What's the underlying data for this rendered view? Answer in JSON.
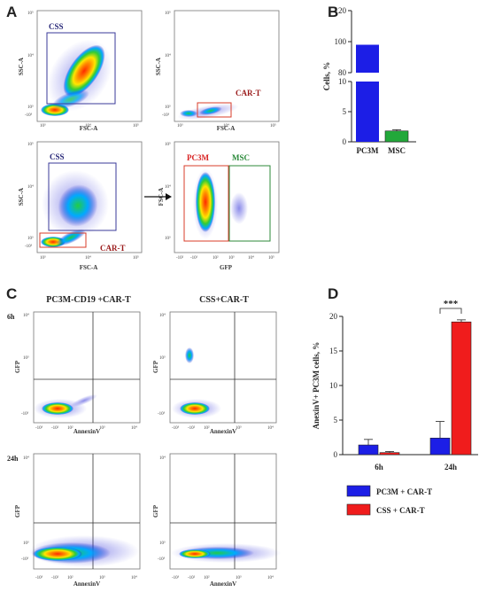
{
  "panels": {
    "a": "A",
    "b": "B",
    "c": "C",
    "d": "D"
  },
  "panel_a": {
    "plots": [
      {
        "x_label": "FSC-A",
        "y_label": "SSC-A",
        "gate": "CSS",
        "x_ticks": [
          "10³",
          "10⁴",
          "10⁵"
        ],
        "y_ticks": [
          "-10³",
          "10³",
          "10⁴",
          "10⁵"
        ]
      },
      {
        "x_label": "FSC-A",
        "y_label": "SSC-A",
        "gate": "CAR-T",
        "x_ticks": [
          "10³",
          "10⁴",
          "10⁵"
        ],
        "y_ticks": [
          "-10³",
          "10³",
          "10⁴",
          "10⁵"
        ]
      },
      {
        "x_label": "FSC-A",
        "y_label": "SSC-A",
        "gates": [
          "CSS",
          "CAR-T"
        ],
        "x_ticks": [
          "10³",
          "10⁴",
          "10⁵"
        ],
        "y_ticks": [
          "-10³",
          "10³",
          "10⁴",
          "10⁵"
        ]
      },
      {
        "x_label": "GFP",
        "y_label": "FSC-A",
        "gates": [
          "PC3M",
          "MSC"
        ],
        "x_ticks": [
          "-10²",
          "-10¹",
          "10²",
          "10³",
          "10⁴",
          "10⁵"
        ],
        "y_ticks": [
          "10³",
          "10⁴",
          "10⁵"
        ]
      }
    ]
  },
  "panel_c": {
    "titles": [
      "PC3M-CD19 +CAR-T",
      "CSS+CAR-T"
    ],
    "rows": [
      "6h",
      "24h"
    ],
    "x_label": "AnnexinV",
    "y_label": "GFP",
    "x_ticks": [
      "-10³",
      "-10²",
      "10²",
      "10³",
      "10⁴"
    ],
    "y_ticks": [
      "-10³",
      "10³",
      "10⁴"
    ]
  },
  "chart_data": [
    {
      "type": "bar",
      "categories": [
        "PC3M",
        "MSC"
      ],
      "values": [
        98,
        1.8
      ],
      "errors": [
        0,
        0.2
      ],
      "ylabel": "Cells, %",
      "y_ticks_low": [
        "0",
        "5",
        "10"
      ],
      "y_ticks_high": [
        "80",
        "100",
        "120"
      ],
      "colors": [
        "#1c1ee6",
        "#22a83a"
      ]
    },
    {
      "type": "bar",
      "categories": [
        "6h",
        "24h"
      ],
      "series": [
        {
          "name": "PC3M + CAR-T",
          "values": [
            1.4,
            2.4
          ],
          "errors": [
            0.8,
            2.4
          ],
          "color": "#1c1ee6"
        },
        {
          "name": "CSS + CAR-T",
          "values": [
            0.3,
            19.2
          ],
          "errors": [
            0.15,
            0.3
          ],
          "color": "#f01c1c"
        }
      ],
      "ylabel": "AnexinV+ PC3M cells, %",
      "ylim": [
        0,
        20
      ],
      "y_ticks": [
        "0",
        "5",
        "10",
        "15",
        "20"
      ],
      "annotation": "***"
    }
  ]
}
